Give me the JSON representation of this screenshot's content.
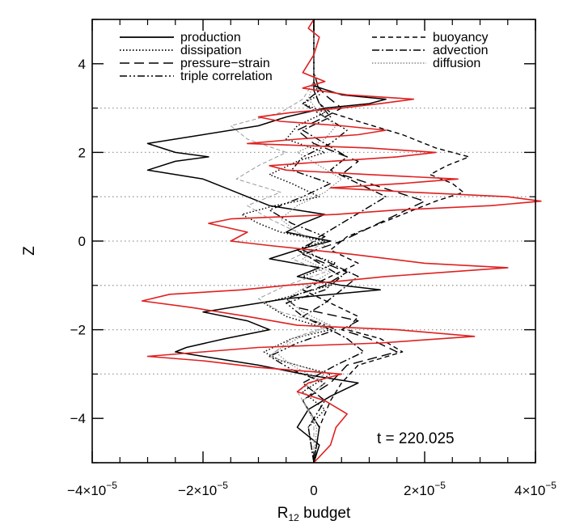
{
  "chart_data": {
    "type": "line",
    "xlabel_main": "R",
    "xlabel_sub": "12",
    "xlabel_rest": " budget",
    "ylabel": "Z",
    "annotation": "t = 220.025",
    "xlim": [
      -4e-05,
      4e-05
    ],
    "ylim": [
      -5,
      5
    ],
    "x_ticks": [
      {
        "value": -4e-05,
        "mantissa": "−4×10",
        "exp": "−5"
      },
      {
        "value": -2e-05,
        "mantissa": "−2×10",
        "exp": "−5"
      },
      {
        "value": 0,
        "mantissa": "0",
        "exp": ""
      },
      {
        "value": 2e-05,
        "mantissa": "2×10",
        "exp": "−5"
      },
      {
        "value": 4e-05,
        "mantissa": "4×10",
        "exp": "−5"
      }
    ],
    "y_ticks": [
      {
        "value": -4,
        "label": "−4"
      },
      {
        "value": -2,
        "label": "−2"
      },
      {
        "value": 0,
        "label": "0"
      },
      {
        "value": 2,
        "label": "2"
      },
      {
        "value": 4,
        "label": "4"
      }
    ],
    "gridlines_y": [
      -3,
      -2,
      -1,
      0,
      1,
      2,
      3
    ],
    "legend_left": [
      "production",
      "dissipation",
      "pressure−strain",
      "triple correlation"
    ],
    "legend_right": [
      "buoyancy",
      "advection",
      "diffusion"
    ],
    "series": [
      {
        "name": "production",
        "style": "solid",
        "color": "#000000",
        "z": [
          -5.0,
          -4.6,
          -4.2,
          -3.8,
          -3.5,
          -3.2,
          -3.0,
          -2.8,
          -2.6,
          -2.5,
          -2.4,
          -2.2,
          -2.0,
          -1.8,
          -1.6,
          -1.4,
          -1.3,
          -1.1,
          -1.0,
          -0.8,
          -0.6,
          -0.4,
          -0.2,
          0.0,
          0.2,
          0.4,
          0.6,
          0.8,
          1.0,
          1.2,
          1.4,
          1.6,
          1.8,
          1.9,
          2.0,
          2.2,
          2.4,
          2.6,
          2.8,
          3.0,
          3.1,
          3.2,
          3.3,
          3.5,
          3.8,
          4.2,
          4.6,
          5.0
        ],
        "value": [
          0,
          1e-06,
          -3e-06,
          -1e-06,
          3e-06,
          8e-06,
          -2e-06,
          -1e-05,
          -2e-05,
          -2.5e-05,
          -2.3e-05,
          -1.6e-05,
          -8e-06,
          -1.2e-05,
          -2e-05,
          -1e-05,
          -5e-06,
          1.2e-05,
          5e-06,
          -3e-06,
          1e-06,
          -8e-06,
          -3e-06,
          3e-06,
          -5e-06,
          -2e-06,
          2e-06,
          -8e-06,
          -1.2e-05,
          -1.6e-05,
          -2e-05,
          -3e-05,
          -2.5e-05,
          -1.9e-05,
          -2.5e-05,
          -3e-05,
          -2e-05,
          -1e-05,
          -5e-06,
          2e-06,
          1e-05,
          1.3e-05,
          5e-06,
          0,
          0,
          0,
          0,
          0
        ]
      },
      {
        "name": "dissipation",
        "style": "dotted",
        "color": "#000000",
        "z": [
          -5.0,
          -4.2,
          -3.8,
          -3.4,
          -3.0,
          -2.7,
          -2.5,
          -2.2,
          -2.0,
          -1.7,
          -1.4,
          -1.2,
          -1.0,
          -0.8,
          -0.5,
          -0.2,
          0.0,
          0.2,
          0.4,
          0.6,
          0.8,
          1.0,
          1.3,
          1.5,
          1.8,
          2.0,
          2.3,
          2.6,
          2.9,
          3.1,
          3.3,
          3.6,
          4.0,
          4.5,
          5.0
        ],
        "value": [
          0,
          -1e-06,
          2e-06,
          -2e-06,
          3e-06,
          -6e-06,
          -9e-06,
          -4e-06,
          3e-06,
          -5e-06,
          -9e-06,
          -3e-06,
          3e-06,
          -2e-06,
          4e-06,
          -3e-06,
          2e-06,
          -6e-06,
          -1e-05,
          -1.3e-05,
          -7e-06,
          1e-06,
          -4e-06,
          -8e-06,
          -3e-06,
          2e-06,
          -5e-06,
          -3e-06,
          2e-06,
          -2e-06,
          1e-06,
          0,
          0,
          0,
          0
        ]
      },
      {
        "name": "pressure−strain",
        "style": "longdash",
        "color": "#000000",
        "z": [
          -5.0,
          -4.2,
          -3.6,
          -3.2,
          -2.8,
          -2.5,
          -2.2,
          -2.0,
          -1.8,
          -1.5,
          -1.3,
          -1.0,
          -0.7,
          -0.5,
          -0.3,
          0.0,
          0.3,
          0.6,
          0.9,
          1.1,
          1.3,
          1.5,
          1.8,
          2.0,
          2.2,
          2.5,
          2.8,
          3.0,
          3.3,
          3.6,
          4.0,
          4.5,
          5.0
        ],
        "value": [
          0,
          1e-06,
          -2e-06,
          3e-06,
          6e-06,
          1.5e-05,
          1e-05,
          5e-06,
          8e-06,
          -3e-06,
          -5e-06,
          2e-06,
          6e-06,
          2e-06,
          -2e-06,
          5e-06,
          1e-05,
          1.5e-05,
          2e-05,
          1.5e-05,
          1e-05,
          5e-06,
          8e-06,
          4e-06,
          0.0,
          -3e-06,
          2e-06,
          5e-06,
          2e-06,
          0,
          0,
          0,
          0
        ]
      },
      {
        "name": "triple correlation",
        "style": "dashdotdot",
        "color": "#000000",
        "z": [
          -5.0,
          -4.2,
          -3.6,
          -3.2,
          -2.9,
          -2.6,
          -2.3,
          -2.0,
          -1.7,
          -1.4,
          -1.1,
          -0.8,
          -0.5,
          -0.2,
          0.1,
          0.4,
          0.7,
          1.0,
          1.3,
          1.6,
          1.9,
          2.2,
          2.5,
          2.8,
          3.1,
          3.4,
          3.8,
          4.2,
          5.0
        ],
        "value": [
          0,
          1e-06,
          -2e-06,
          2e-06,
          -4e-06,
          -8e-06,
          -3e-06,
          4e-06,
          -2e-06,
          -5e-06,
          2e-06,
          5e-06,
          1e-06,
          -3e-06,
          2e-06,
          -4e-06,
          -8e-06,
          -2e-06,
          3e-06,
          -4e-06,
          -2e-06,
          3e-06,
          6e-06,
          2e-06,
          -2e-06,
          1e-06,
          0,
          0,
          0
        ]
      },
      {
        "name": "buoyancy",
        "style": "shortdash",
        "color": "#000000",
        "z": [
          -5.0,
          -4.2,
          -3.6,
          -3.2,
          -2.8,
          -2.5,
          -2.2,
          -2.0,
          -1.7,
          -1.4,
          -1.1,
          -0.8,
          -0.5,
          -0.2,
          0.1,
          0.4,
          0.7,
          0.9,
          1.1,
          1.3,
          1.5,
          1.7,
          1.9,
          2.1,
          2.4,
          2.7,
          2.9,
          3.1,
          3.4,
          3.8,
          4.2,
          5.0
        ],
        "value": [
          0,
          1e-06,
          3e-06,
          5e-06,
          8e-06,
          1.6e-05,
          1.2e-05,
          6e-06,
          8e-06,
          3e-06,
          -2e-06,
          3e-06,
          8e-06,
          3e-06,
          6e-06,
          1.2e-05,
          1.8e-05,
          2.2e-05,
          2.7e-05,
          2.5e-05,
          2.1e-05,
          2.4e-05,
          2.8e-05,
          2.2e-05,
          1.6e-05,
          8e-06,
          3e-06,
          1e-06,
          0,
          0,
          0,
          0
        ]
      },
      {
        "name": "advection",
        "style": "dashdot",
        "color": "#000000",
        "z": [
          -5.0,
          -4.2,
          -3.6,
          -3.2,
          -2.8,
          -2.5,
          -2.2,
          -2.0,
          -1.7,
          -1.4,
          -1.1,
          -0.8,
          -0.5,
          -0.2,
          0.1,
          0.4,
          0.7,
          1.0,
          1.3,
          1.6,
          1.9,
          2.2,
          2.5,
          2.8,
          3.1,
          3.4,
          3.8,
          4.2,
          5.0
        ],
        "value": [
          0,
          -1e-06,
          2e-06,
          -2e-06,
          4e-06,
          9e-06,
          6e-06,
          3e-06,
          -2e-06,
          2e-06,
          5e-06,
          8e-06,
          3e-06,
          -2e-06,
          1e-06,
          5e-06,
          9e-06,
          1.3e-05,
          8e-06,
          3e-06,
          6e-06,
          2e-06,
          -2e-06,
          3e-06,
          1e-06,
          0,
          0,
          0,
          0
        ]
      },
      {
        "name": "diffusion",
        "style": "dot-gray",
        "color": "#888888",
        "z": [
          -5.0,
          -4.2,
          -3.6,
          -3.2,
          -2.8,
          -2.5,
          -2.2,
          -1.9,
          -1.6,
          -1.3,
          -1.0,
          -0.7,
          -0.4,
          -0.1,
          0.2,
          0.5,
          0.8,
          1.1,
          1.4,
          1.7,
          2.0,
          2.3,
          2.6,
          2.9,
          3.2,
          3.6,
          4.0,
          5.0
        ],
        "value": [
          0,
          5e-07,
          -2e-06,
          2e-06,
          -4e-06,
          -7e-06,
          -3e-06,
          3e-06,
          -2e-06,
          -5e-06,
          -1e-06,
          3e-06,
          -2e-06,
          2e-06,
          -3e-06,
          -6e-06,
          -3e-06,
          2e-06,
          5e-06,
          1e-06,
          -3e-06,
          2e-06,
          4e-06,
          1e-06,
          -1e-06,
          0,
          0,
          0
        ]
      },
      {
        "name": "series-gray-dashed",
        "style": "dash-gray",
        "color": "#999999",
        "z": [
          -5.0,
          -4.0,
          -3.4,
          -3.0,
          -2.6,
          -2.2,
          -1.9,
          -1.6,
          -1.3,
          -1.0,
          -0.7,
          -0.4,
          -0.1,
          0.2,
          0.5,
          0.8,
          1.1,
          1.4,
          1.7,
          2.0,
          2.3,
          2.6,
          2.9,
          3.2,
          3.6,
          4.2,
          5.0
        ],
        "value": [
          0,
          0,
          -3e-06,
          2e-06,
          -8e-06,
          -4e-06,
          3e-06,
          -6e-06,
          -1e-05,
          -5e-06,
          2e-06,
          -4e-06,
          1e-06,
          -3e-06,
          -8e-06,
          -1.2e-05,
          -6e-06,
          -1.4e-05,
          -1e-05,
          -5e-06,
          -1.2e-05,
          -1.5e-05,
          -6e-06,
          -2e-06,
          0,
          0,
          0
        ]
      },
      {
        "name": "series-red",
        "style": "solid-red",
        "color": "#e02020",
        "z": [
          -5.0,
          -4.6,
          -4.2,
          -3.9,
          -3.6,
          -3.4,
          -3.2,
          -3.0,
          -2.85,
          -2.7,
          -2.6,
          -2.5,
          -2.4,
          -2.3,
          -2.15,
          -2.0,
          -1.9,
          -1.7,
          -1.5,
          -1.35,
          -1.2,
          -1.1,
          -1.0,
          -0.9,
          -0.8,
          -0.6,
          -0.5,
          -0.3,
          -0.1,
          0.0,
          0.2,
          0.4,
          0.5,
          0.6,
          0.7,
          0.8,
          0.9,
          1.0,
          1.1,
          1.2,
          1.3,
          1.4,
          1.5,
          1.6,
          1.7,
          1.8,
          1.9,
          2.0,
          2.1,
          2.2,
          2.3,
          2.4,
          2.5,
          2.6,
          2.7,
          2.8,
          2.9,
          3.0,
          3.1,
          3.2,
          3.3,
          3.45,
          3.6,
          3.8,
          4.2,
          4.6,
          4.8,
          5.0
        ],
        "value": [
          0,
          3e-06,
          4e-06,
          6e-06,
          2e-06,
          -3e-06,
          -1e-06,
          5e-06,
          -1e-05,
          -2e-05,
          -3e-05,
          -2e-05,
          -1e-05,
          1.2e-05,
          2.9e-05,
          1.5e-05,
          -3e-06,
          -1.2e-05,
          -2.2e-05,
          -3.1e-05,
          -2.6e-05,
          -1.3e-05,
          -5e-06,
          5e-06,
          1.3e-05,
          3.5e-05,
          2e-05,
          7e-06,
          -8e-06,
          -1.5e-05,
          -1.2e-05,
          -1.9e-05,
          -1.5e-05,
          4e-06,
          1.5e-05,
          3.2e-05,
          4.1e-05,
          3.5e-05,
          1.8e-05,
          3e-06,
          1.6e-05,
          2.6e-05,
          1e-05,
          -5e-06,
          -8e-06,
          3e-06,
          1.5e-05,
          2.2e-05,
          1e-05,
          -1.2e-05,
          -3e-06,
          8e-06,
          1.3e-05,
          5e-06,
          -6e-06,
          -1e-05,
          -4e-06,
          5e-06,
          1.2e-05,
          1.8e-05,
          6e-06,
          -2e-06,
          2e-06,
          -2e-06,
          0,
          1e-06,
          -1e-06,
          0
        ]
      }
    ]
  }
}
